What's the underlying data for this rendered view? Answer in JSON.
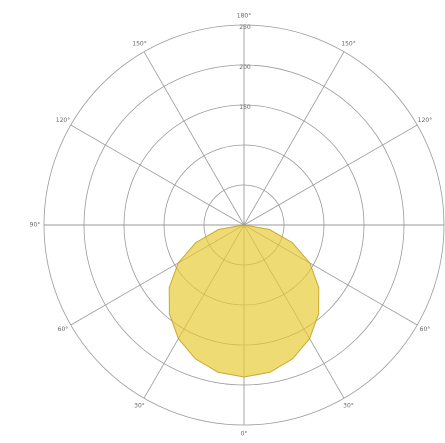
{
  "chart_data": {
    "type": "polar-area",
    "angle_labels": [
      "180°",
      "150°",
      "150°",
      "120°",
      "120°",
      "90°",
      "90°",
      "60°",
      "60°",
      "30°",
      "30°",
      "0°"
    ],
    "angle_values_deg": [
      180,
      150,
      -150,
      120,
      -120,
      90,
      -90,
      60,
      -60,
      30,
      -30,
      0
    ],
    "radial_labels": [
      "150",
      "200",
      "250"
    ],
    "radial_ticks": [
      50,
      100,
      150,
      200,
      250
    ],
    "rmax": 250,
    "series": [
      {
        "curve": {
          "angles_deg": [
            0,
            10,
            20,
            30,
            40,
            50,
            60,
            70,
            80,
            90
          ],
          "values": [
            190,
            187,
            178,
            164,
            145,
            122,
            95,
            64,
            32,
            0
          ]
        }
      }
    ],
    "colors": {
      "fill": "#ecd55a",
      "stroke": "#c9a934",
      "grid": "#9a9a9a"
    }
  }
}
